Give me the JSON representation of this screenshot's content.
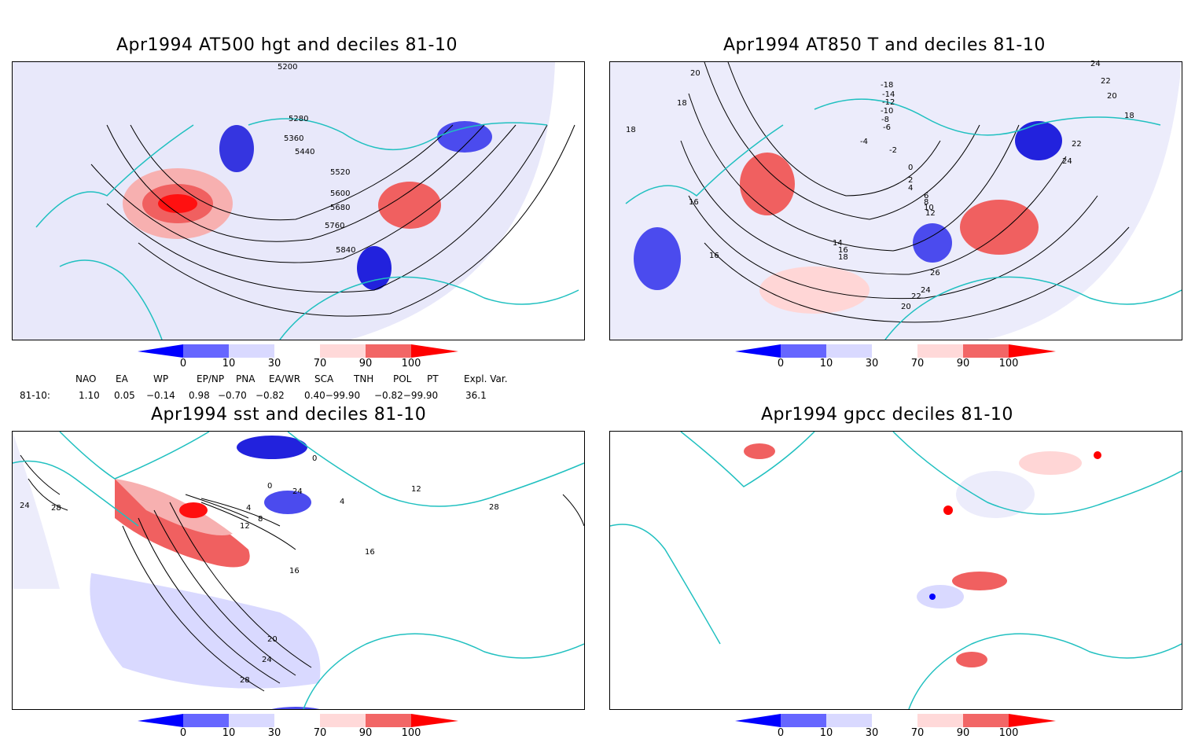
{
  "panels": [
    {
      "title": "Apr1994 AT500 hgt and deciles 81-10",
      "contour_labels": [
        "5200",
        "5280",
        "5360",
        "5440",
        "5520",
        "5600",
        "5680",
        "5760",
        "5840"
      ]
    },
    {
      "title": "Apr1994 AT850 T and deciles 81-10",
      "contour_labels": [
        "20",
        "18",
        "18",
        "16",
        "16",
        "-18",
        "-14",
        "-12",
        "-10",
        "-8",
        "-6",
        "-4",
        "-2",
        "0",
        "2",
        "4",
        "6",
        "8",
        "10",
        "12",
        "14",
        "16",
        "18",
        "22",
        "24",
        "26",
        "22",
        "24",
        "20",
        "24",
        "22",
        "20",
        "18"
      ]
    },
    {
      "title": "Apr1994 sst and deciles 81-10",
      "contour_labels": [
        "24",
        "28",
        "0",
        "0",
        "4",
        "8",
        "12",
        "16",
        "24",
        "20",
        "24",
        "28",
        "16",
        "4",
        "12",
        "28"
      ]
    },
    {
      "title": "Apr1994 gpcc deciles 81-10",
      "contour_labels": []
    }
  ],
  "colorbar": {
    "labels": [
      "0",
      "10",
      "30",
      "70",
      "90",
      "100"
    ],
    "colors": [
      "#0000ff",
      "#6666ff",
      "#d9d9ff",
      "#ffffff",
      "#ffd9d9",
      "#f26666",
      "#ff0000"
    ]
  },
  "indices": {
    "headers": [
      "NAO",
      "EA",
      "WP",
      "EP/NP",
      "PNA",
      "EA/WR",
      "SCA",
      "TNH",
      "POL",
      "PT",
      "Expl. Var."
    ],
    "row_label": "81-10:",
    "values": [
      "1.10",
      "0.05",
      "−0.14",
      "0.98",
      "−0.70",
      "−0.82",
      "0.40−99.90",
      "−0.82−99.90",
      "36.1"
    ]
  },
  "colors": {
    "coast": "#20c0c0",
    "contour": "#000000",
    "grid": "#888888"
  }
}
